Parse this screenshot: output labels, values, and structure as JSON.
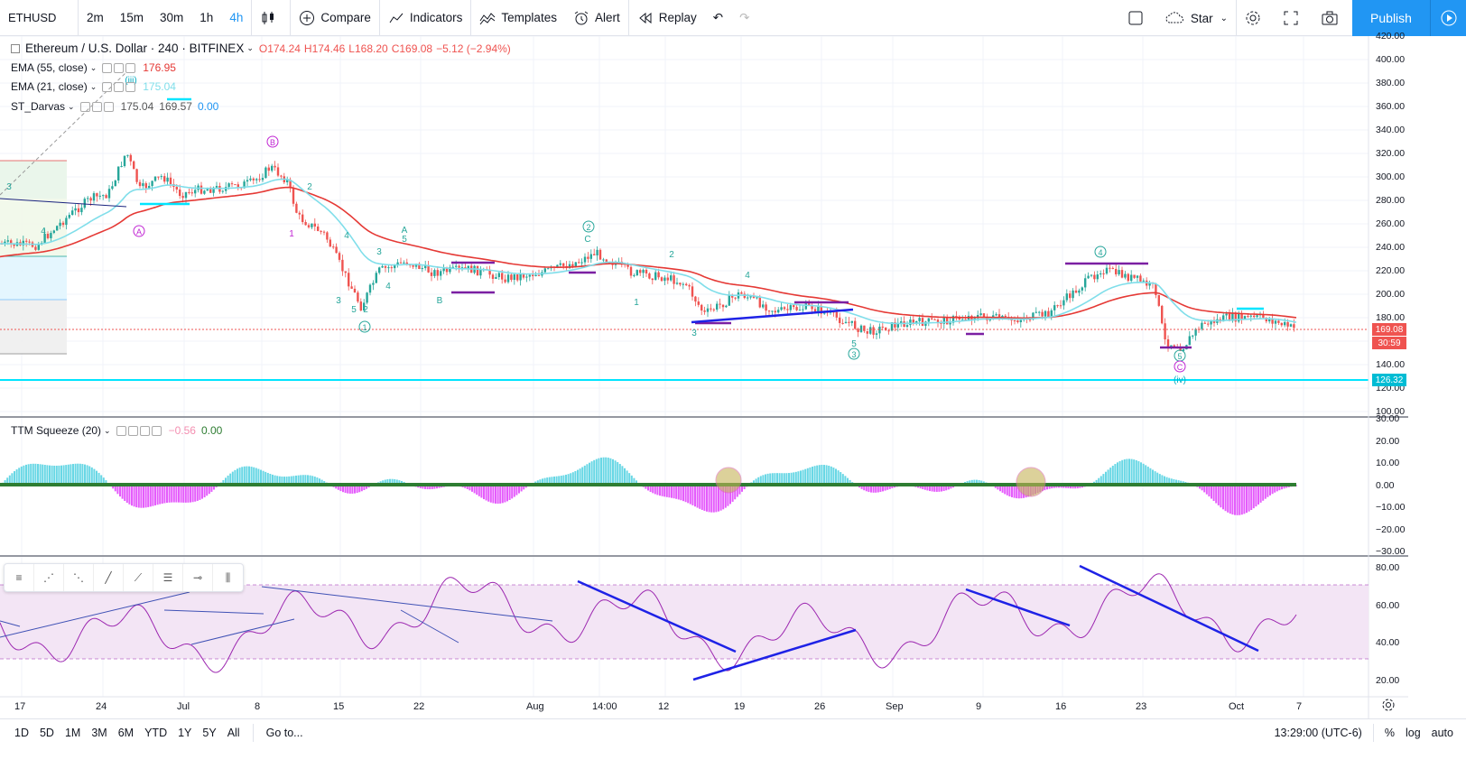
{
  "toolbar": {
    "symbol": "ETHUSD",
    "intervals": [
      "2m",
      "15m",
      "30m",
      "1h",
      "4h"
    ],
    "active_interval": "4h",
    "compare": "Compare",
    "indicators": "Indicators",
    "templates": "Templates",
    "alert": "Alert",
    "replay": "Replay",
    "star": "Star",
    "publish": "Publish"
  },
  "legend": {
    "title": "Ethereum / U.S. Dollar · 240 · BITFINEX",
    "o": "O174.24",
    "h": "H174.46",
    "l": "L168.20",
    "c": "C169.08",
    "chg": "−5.12 (−2.94%)",
    "ema55": "EMA (55, close)",
    "ema55_val": "176.95",
    "ema21": "EMA (21, close)",
    "ema21_val": "175.04",
    "darvas": "ST_Darvas",
    "darvas_vals": [
      "175.04",
      "169.57",
      "0.00"
    ],
    "ttm": "TTM Squeeze (20)",
    "ttm_vals": [
      "−0.56",
      "0.00"
    ]
  },
  "price_axis": [
    "420.00",
    "400.00",
    "380.00",
    "360.00",
    "340.00",
    "320.00",
    "300.00",
    "280.00",
    "260.00",
    "240.00",
    "220.00",
    "200.00",
    "180.00",
    "160.00",
    "140.00",
    "120.00",
    "100.00"
  ],
  "price_boxes": {
    "last": "169.08",
    "timer": "30:59",
    "level": "126.32"
  },
  "ttm_axis": [
    "30.00",
    "20.00",
    "10.00",
    "0.00",
    "−10.00",
    "−20.00",
    "−30.00"
  ],
  "rsi_axis": [
    "80.00",
    "60.00",
    "40.00",
    "20.00"
  ],
  "time_axis": [
    "17",
    "24",
    "Jul",
    "8",
    "15",
    "22",
    "Aug",
    "14:00",
    "12",
    "19",
    "26",
    "Sep",
    "9",
    "16",
    "23",
    "Oct",
    "7"
  ],
  "wave_labels": [
    "(iii)",
    "A",
    "B",
    "1",
    "2",
    "3",
    "4",
    "5",
    "C",
    "(iv)"
  ],
  "bottom": {
    "ranges": [
      "1D",
      "5D",
      "1M",
      "3M",
      "6M",
      "YTD",
      "1Y",
      "5Y",
      "All"
    ],
    "goto": "Go to...",
    "clock": "13:29:00 (UTC-6)",
    "pct": "%",
    "log": "log",
    "auto": "auto"
  },
  "colors": {
    "accent": "#2196f3",
    "ema55": "#e53935",
    "ema21": "#80deea",
    "up": "#26a69a",
    "down": "#ef5350",
    "rsi": "#9c27b0",
    "level": "#00e5ff"
  }
}
